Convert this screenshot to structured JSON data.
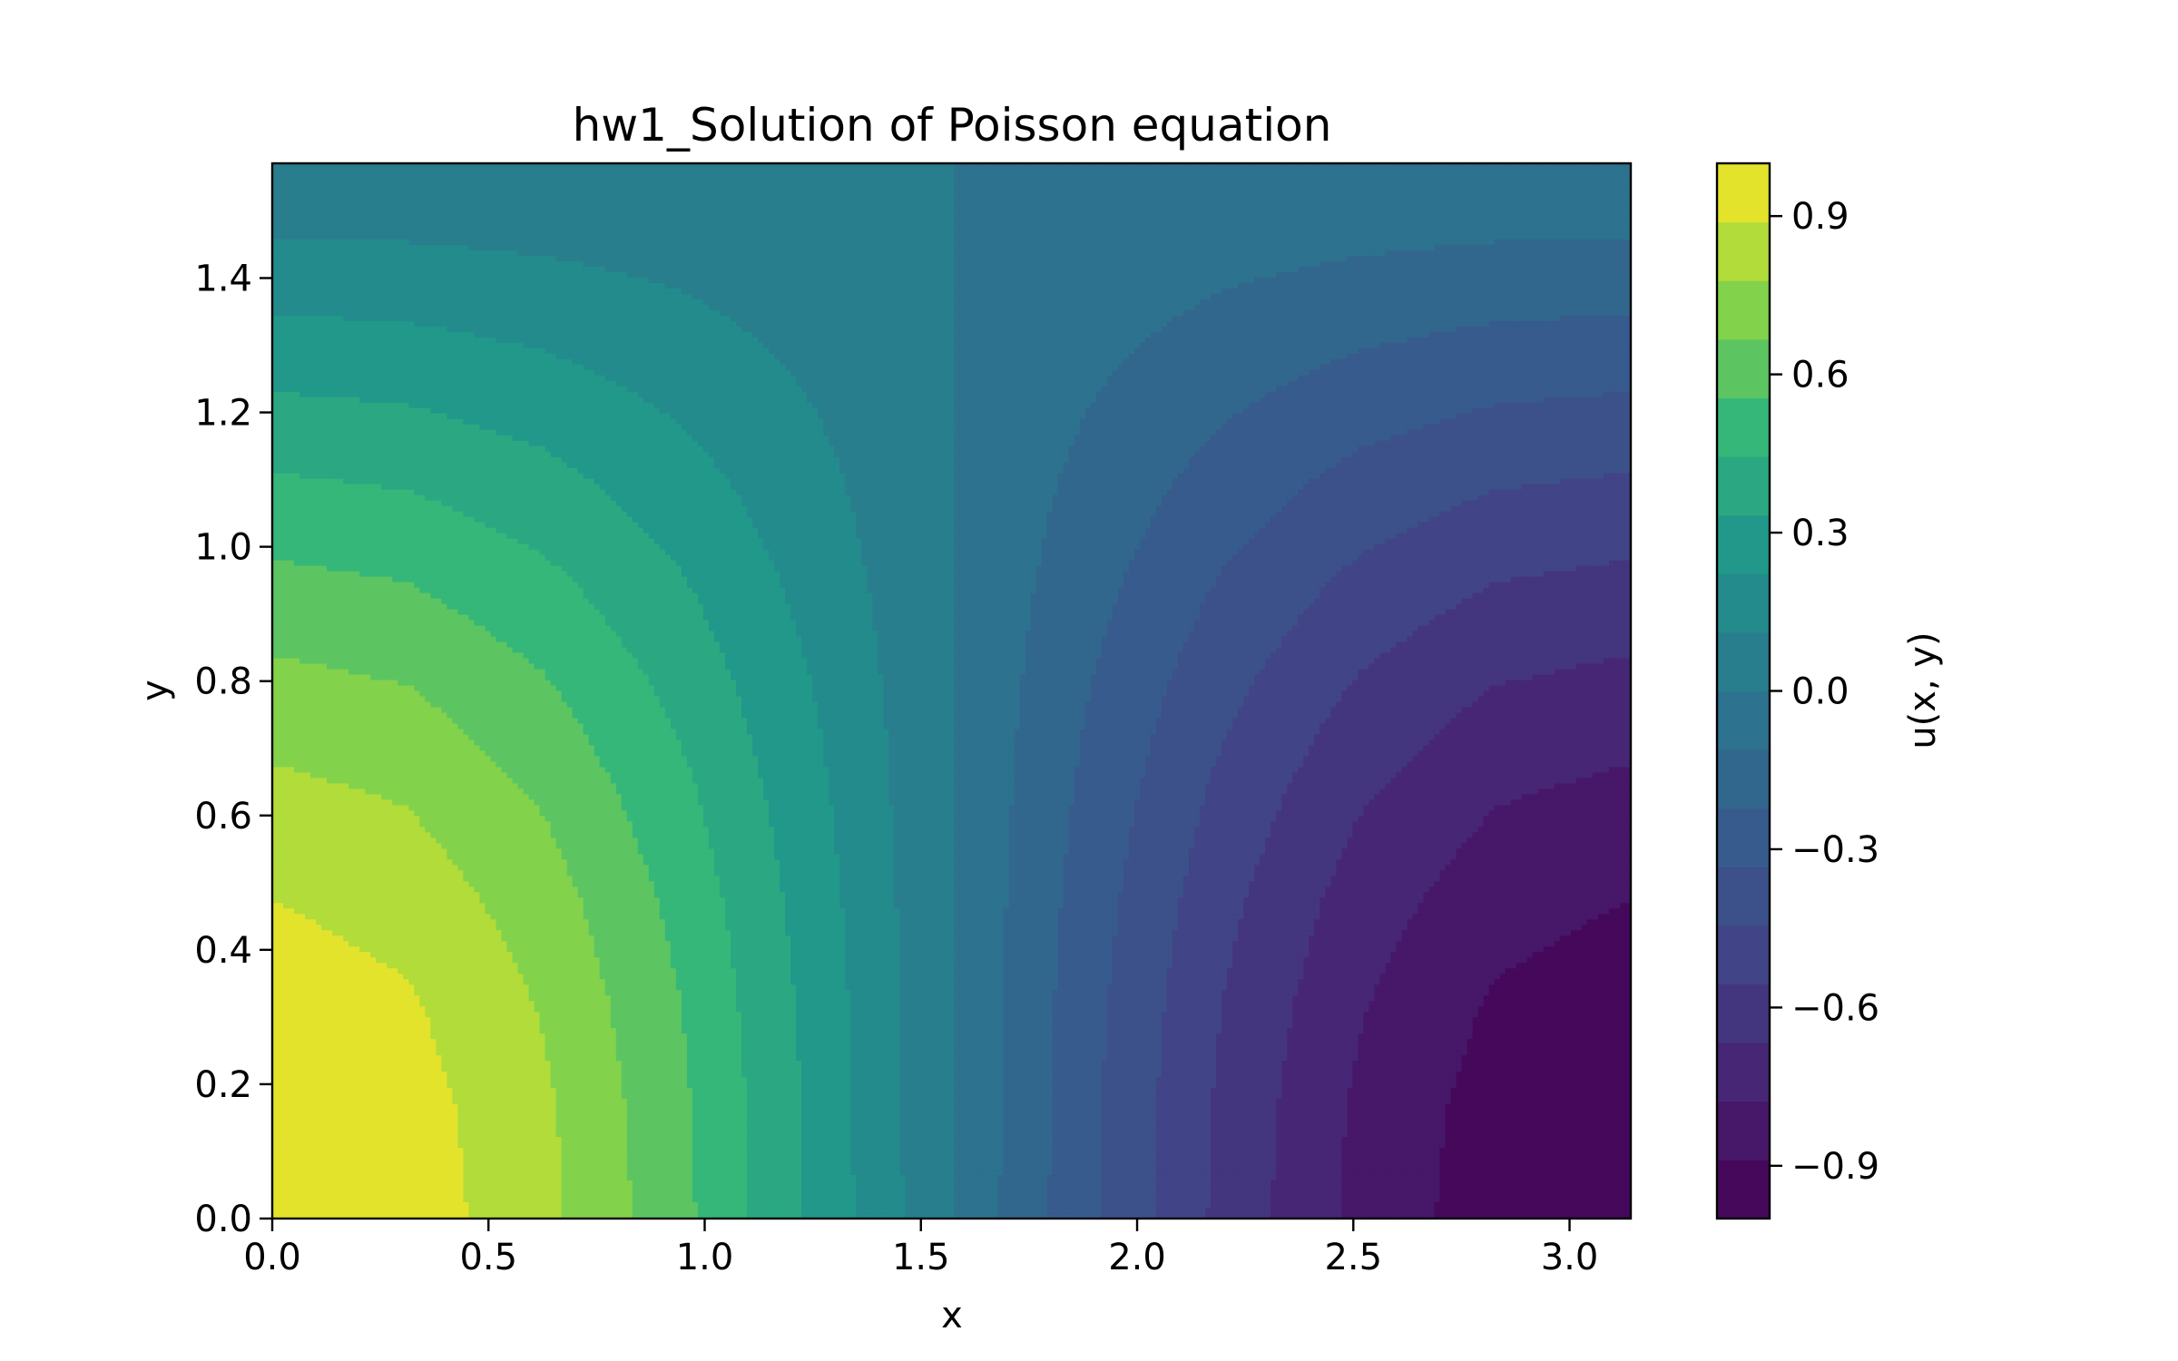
{
  "chart_data": {
    "type": "heatmap",
    "subtype": "filled-contour",
    "title": "hw1_Solution of Poisson equation",
    "xlabel": "x",
    "ylabel": "y",
    "colorbar_label": "u(x, y)",
    "colormap": "viridis",
    "xlim": [
      0,
      3.14159
    ],
    "ylim": [
      0,
      1.5708
    ],
    "xticks": [
      "0.0",
      "0.5",
      "1.0",
      "1.5",
      "2.0",
      "2.5",
      "3.0"
    ],
    "yticks": [
      "0.0",
      "0.2",
      "0.4",
      "0.6",
      "0.8",
      "1.0",
      "1.2",
      "1.4"
    ],
    "colorbar_ticks": [
      "0.9",
      "0.6",
      "0.3",
      "0.0",
      "−0.3",
      "−0.6",
      "−0.9"
    ],
    "colorbar_range": [
      -1.0,
      1.0
    ],
    "levels_count": 18,
    "grid": false,
    "field_expression": "u(x, y) = cos(x) · cos(y)",
    "grid_resolution": [
      11,
      11
    ]
  }
}
